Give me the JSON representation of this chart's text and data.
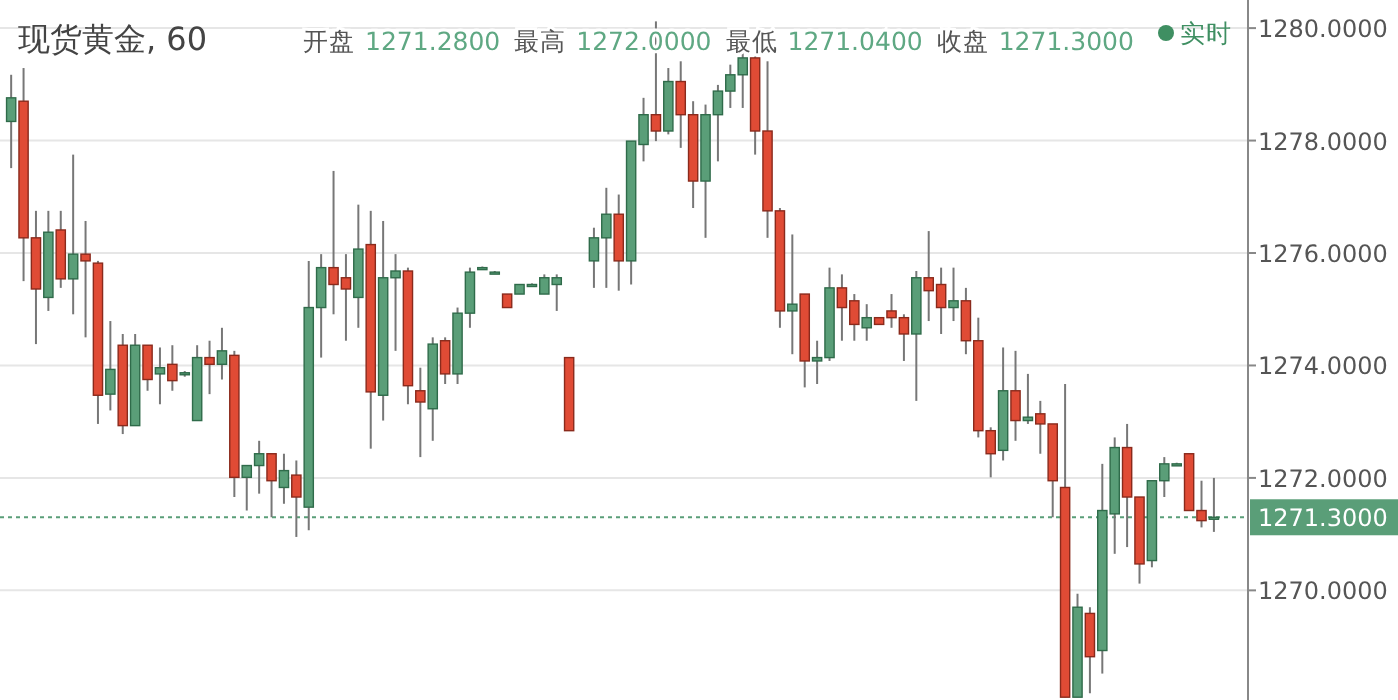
{
  "chart_data": {
    "type": "candlestick",
    "title": "现货黄金, 60",
    "annotations": [
      "开盘 1271.2800",
      "最高 1272.0000",
      "最低 1271.0400",
      "收盘 1271.3000",
      "实时"
    ],
    "categories": [
      null,
      null,
      null,
      null,
      null,
      null,
      null,
      null,
      null,
      null,
      null,
      null,
      null,
      null,
      null,
      null,
      null,
      null,
      null,
      null,
      null,
      null,
      null,
      null,
      null,
      null,
      null,
      null,
      null,
      null,
      null,
      null,
      null,
      null,
      null,
      null,
      null,
      null,
      null,
      null,
      null,
      null,
      null,
      null,
      null,
      null,
      null,
      null,
      null,
      null,
      null,
      null,
      null,
      null,
      null,
      null,
      null,
      null,
      null,
      null,
      null,
      null,
      null,
      null,
      null,
      null,
      null,
      null,
      null,
      null,
      null,
      null,
      null,
      null,
      null,
      null,
      null,
      null,
      null,
      null,
      null,
      null,
      null,
      null,
      null,
      null,
      null,
      null,
      null,
      null,
      null,
      null,
      null,
      null,
      null,
      null,
      null,
      null
    ],
    "ohlc": [
      [
        1278.34,
        1279.17,
        1277.51,
        1278.76
      ],
      [
        1278.7,
        1279.29,
        1275.5,
        1276.27
      ],
      [
        1276.27,
        1276.75,
        1274.38,
        1275.36
      ],
      [
        1275.21,
        1276.75,
        1274.97,
        1276.37
      ],
      [
        1276.41,
        1276.75,
        1275.38,
        1275.54
      ],
      [
        1275.54,
        1277.75,
        1274.91,
        1275.98
      ],
      [
        1275.98,
        1276.57,
        1274.5,
        1275.86
      ],
      [
        1275.82,
        1275.86,
        1272.96,
        1273.47
      ],
      [
        1273.49,
        1274.79,
        1273.2,
        1273.93
      ],
      [
        1274.36,
        1274.56,
        1272.78,
        1272.93
      ],
      [
        1272.93,
        1274.56,
        1272.93,
        1274.36
      ],
      [
        1274.36,
        1274.36,
        1273.55,
        1273.75
      ],
      [
        1273.85,
        1274.32,
        1273.31,
        1273.96
      ],
      [
        1274.02,
        1274.36,
        1273.55,
        1273.73
      ],
      [
        1273.85,
        1273.9,
        1273.8,
        1273.87
      ],
      [
        1273.02,
        1274.36,
        1273.02,
        1274.14
      ],
      [
        1274.14,
        1274.44,
        1273.49,
        1274.02
      ],
      [
        1274.02,
        1274.67,
        1273.75,
        1274.26
      ],
      [
        1274.18,
        1274.26,
        1271.66,
        1272.01
      ],
      [
        1272.01,
        1272.22,
        1271.42,
        1272.22
      ],
      [
        1272.22,
        1272.66,
        1271.72,
        1272.43
      ],
      [
        1272.43,
        1272.43,
        1271.3,
        1271.95
      ],
      [
        1271.83,
        1272.43,
        1271.54,
        1272.13
      ],
      [
        1272.05,
        1272.31,
        1270.95,
        1271.66
      ],
      [
        1271.48,
        1275.86,
        1271.07,
        1275.03
      ],
      [
        1275.03,
        1275.98,
        1274.14,
        1275.74
      ],
      [
        1275.74,
        1277.46,
        1274.91,
        1275.44
      ],
      [
        1275.56,
        1275.98,
        1274.44,
        1275.36
      ],
      [
        1275.21,
        1276.86,
        1274.67,
        1276.07
      ],
      [
        1276.15,
        1276.75,
        1272.52,
        1273.53
      ],
      [
        1273.47,
        1276.57,
        1273.02,
        1275.56
      ],
      [
        1275.56,
        1275.98,
        1274.26,
        1275.68
      ],
      [
        1275.68,
        1275.74,
        1273.31,
        1273.64
      ],
      [
        1273.55,
        1273.96,
        1272.37,
        1273.35
      ],
      [
        1273.23,
        1274.5,
        1272.66,
        1274.38
      ],
      [
        1274.44,
        1274.5,
        1273.67,
        1273.85
      ],
      [
        1273.85,
        1275.03,
        1273.67,
        1274.93
      ],
      [
        1274.93,
        1275.74,
        1274.67,
        1275.66
      ],
      [
        1275.72,
        1275.76,
        1275.72,
        1275.74
      ],
      [
        1275.66,
        1275.68,
        1275.64,
        1275.66
      ],
      [
        1275.27,
        1275.27,
        1275.03,
        1275.03
      ],
      [
        1275.27,
        1275.44,
        1275.27,
        1275.44
      ],
      [
        1275.44,
        1275.46,
        1275.42,
        1275.44
      ],
      [
        1275.27,
        1275.62,
        1275.27,
        1275.56
      ],
      [
        1275.44,
        1275.62,
        1274.97,
        1275.56
      ],
      [
        1274.14,
        1274.14,
        1272.84,
        1272.84
      ],
      null,
      [
        1275.86,
        1276.45,
        1275.38,
        1276.27
      ],
      [
        1276.27,
        1277.16,
        1275.38,
        1276.69
      ],
      [
        1276.69,
        1277.04,
        1275.33,
        1275.86
      ],
      [
        1275.86,
        1277.99,
        1275.44,
        1277.99
      ],
      [
        1277.93,
        1278.76,
        1277.63,
        1278.46
      ],
      [
        1278.46,
        1280.12,
        1277.99,
        1278.17
      ],
      [
        1278.17,
        1279.29,
        1278.11,
        1279.05
      ],
      [
        1279.05,
        1279.41,
        1277.87,
        1278.46
      ],
      [
        1278.46,
        1278.7,
        1276.8,
        1277.28
      ],
      [
        1277.28,
        1278.64,
        1276.27,
        1278.46
      ],
      [
        1278.46,
        1278.99,
        1277.63,
        1278.88
      ],
      [
        1278.88,
        1279.35,
        1278.58,
        1279.17
      ],
      [
        1279.17,
        1279.59,
        1278.58,
        1279.47
      ],
      [
        1279.47,
        1279.53,
        1277.75,
        1278.17
      ],
      [
        1278.17,
        1279.41,
        1276.27,
        1276.75
      ],
      [
        1276.75,
        1276.8,
        1274.67,
        1274.97
      ],
      [
        1274.97,
        1276.33,
        1274.2,
        1275.09
      ],
      [
        1275.27,
        1275.27,
        1273.61,
        1274.08
      ],
      [
        1274.08,
        1274.44,
        1273.67,
        1274.14
      ],
      [
        1274.14,
        1275.74,
        1274.08,
        1275.38
      ],
      [
        1275.38,
        1275.62,
        1274.44,
        1275.03
      ],
      [
        1275.15,
        1275.27,
        1274.44,
        1274.73
      ],
      [
        1274.67,
        1275.09,
        1274.44,
        1274.85
      ],
      [
        1274.85,
        1274.85,
        1274.73,
        1274.73
      ],
      [
        1274.97,
        1275.27,
        1274.67,
        1274.85
      ],
      [
        1274.85,
        1274.91,
        1274.08,
        1274.56
      ],
      [
        1274.56,
        1275.68,
        1273.37,
        1275.56
      ],
      [
        1275.56,
        1276.39,
        1274.79,
        1275.33
      ],
      [
        1275.44,
        1275.74,
        1274.56,
        1275.03
      ],
      [
        1275.03,
        1275.74,
        1274.79,
        1275.15
      ],
      [
        1275.15,
        1275.38,
        1274.2,
        1274.44
      ],
      [
        1274.44,
        1274.85,
        1272.72,
        1272.84
      ],
      [
        1272.84,
        1272.9,
        1272.01,
        1272.43
      ],
      [
        1272.49,
        1274.32,
        1272.31,
        1273.55
      ],
      [
        1273.55,
        1274.26,
        1272.66,
        1273.02
      ],
      [
        1273.02,
        1273.85,
        1272.96,
        1273.08
      ],
      [
        1273.14,
        1273.37,
        1272.43,
        1272.96
      ],
      [
        1272.96,
        1272.96,
        1271.3,
        1271.95
      ],
      [
        1271.83,
        1273.67,
        1268.1,
        1268.1
      ],
      [
        1268.1,
        1269.94,
        1268.1,
        1269.7
      ],
      [
        1269.59,
        1269.7,
        1268.17,
        1268.82
      ],
      [
        1268.93,
        1272.25,
        1268.52,
        1271.42
      ],
      [
        1271.36,
        1272.72,
        1270.65,
        1272.54
      ],
      [
        1272.54,
        1272.96,
        1270.77,
        1271.66
      ],
      [
        1271.66,
        1271.66,
        1270.12,
        1270.47
      ],
      [
        1270.53,
        1271.95,
        1270.41,
        1271.95
      ],
      [
        1271.95,
        1272.37,
        1271.66,
        1272.25
      ],
      [
        1272.25,
        1272.27,
        1272.23,
        1272.25
      ],
      [
        1272.43,
        1272.43,
        1271.42,
        1271.42
      ],
      [
        1271.42,
        1271.95,
        1271.12,
        1271.24
      ],
      [
        1271.28,
        1272.0,
        1271.04,
        1271.3
      ]
    ],
    "ylim": [
      1268.05,
      1280.5
    ],
    "yticks": [
      {
        "value": 1270,
        "label": "1270.0000"
      },
      {
        "value": 1272,
        "label": "1272.0000"
      },
      {
        "value": 1274,
        "label": "1274.0000"
      },
      {
        "value": 1276,
        "label": "1276.0000"
      },
      {
        "value": 1278,
        "label": "1278.0000"
      },
      {
        "value": 1280,
        "label": "1280.0000"
      }
    ],
    "grid": "y",
    "ref_lines": [
      {
        "axis": "y",
        "value": 1271.3,
        "label": "1271.3000",
        "color": "#5a9e78",
        "line_style": "dotted"
      }
    ]
  }
}
